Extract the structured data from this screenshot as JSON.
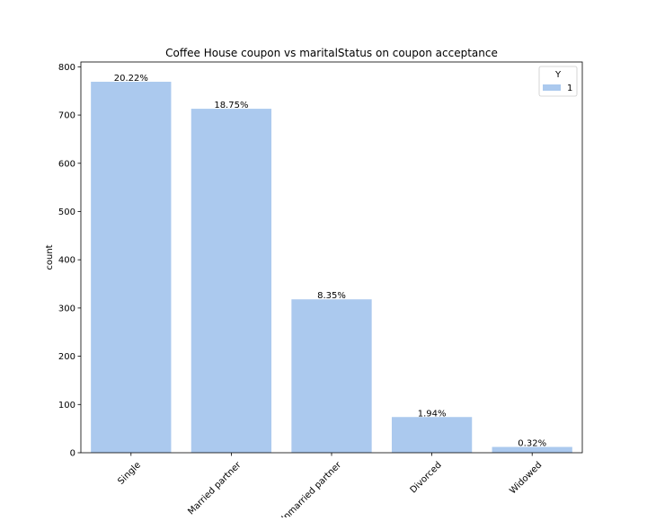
{
  "chart_data": {
    "type": "bar",
    "title": "Coffee House coupon vs maritalStatus on coupon acceptance",
    "xlabel": "",
    "ylabel": "count",
    "categories": [
      "Single",
      "Married partner",
      "Unmarried partner",
      "Divorced",
      "Widowed"
    ],
    "series": [
      {
        "name": "1",
        "values": [
          769,
          713,
          318,
          74,
          12
        ],
        "labels": [
          "20.22%",
          "18.75%",
          "8.35%",
          "1.94%",
          "0.32%"
        ],
        "color": "#abc9ee"
      }
    ],
    "ylim": [
      0,
      810
    ],
    "yticks": [
      0,
      100,
      200,
      300,
      400,
      500,
      600,
      700,
      800
    ],
    "grid": false,
    "legend": {
      "title": "Y",
      "placement": "top-right"
    }
  }
}
